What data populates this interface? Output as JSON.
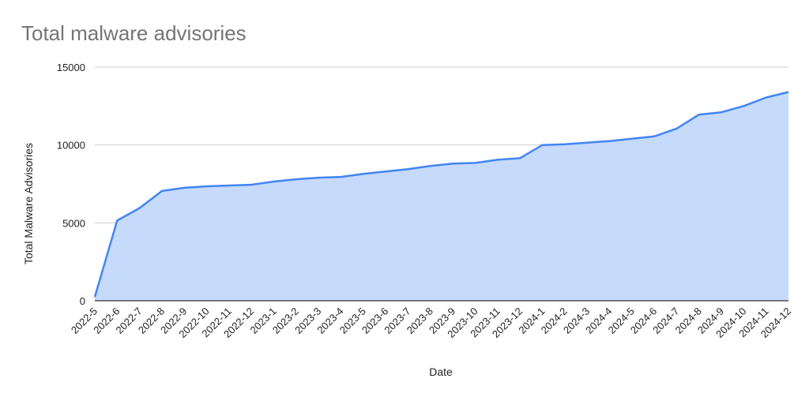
{
  "chart_data": {
    "type": "area",
    "title": "Total malware advisories",
    "xlabel": "Date",
    "ylabel": "Total Malware Advisories",
    "ylim": [
      0,
      15000
    ],
    "yticks": [
      0,
      5000,
      10000,
      15000
    ],
    "grid": true,
    "legend": "none",
    "categories": [
      "2022-5",
      "2022-6",
      "2022-7",
      "2022-8",
      "2022-9",
      "2022-10",
      "2022-11",
      "2022-12",
      "2023-1",
      "2023-2",
      "2023-3",
      "2023-4",
      "2023-5",
      "2023-6",
      "2023-7",
      "2023-8",
      "2023-9",
      "2023-10",
      "2023-11",
      "2023-12",
      "2024-1",
      "2024-2",
      "2024-3",
      "2024-4",
      "2024-5",
      "2024-6",
      "2024-7",
      "2024-8",
      "2024-9",
      "2024-10",
      "2024-11",
      "2024-12"
    ],
    "series": [
      {
        "name": "Total Malware Advisories",
        "color": "#4285f4",
        "fill": "#c6dafc",
        "values": [
          250,
          5150,
          5950,
          7050,
          7250,
          7350,
          7400,
          7450,
          7650,
          7800,
          7900,
          7950,
          8150,
          8300,
          8450,
          8650,
          8800,
          8850,
          9050,
          9150,
          10000,
          10050,
          10150,
          10250,
          10400,
          10550,
          11050,
          11950,
          12100,
          12500,
          13050,
          13400
        ]
      }
    ]
  }
}
